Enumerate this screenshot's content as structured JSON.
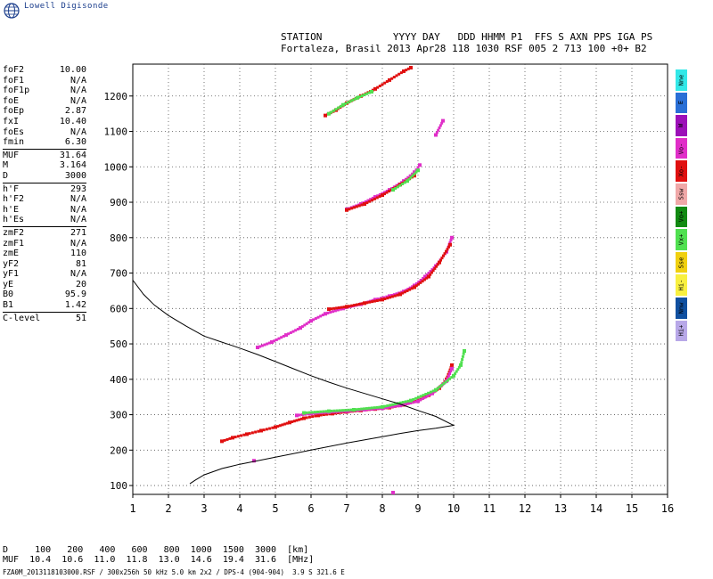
{
  "app": {
    "logo_text": "Lowell Digisonde"
  },
  "header": {
    "line1": "STATION            YYYY DAY   DDD HHMM P1  FFS S AXN PPS IGA PS",
    "line2": "Fortaleza, Brasil 2013 Apr28 118 1030 RSF 005 2 713 100 +0+ B2"
  },
  "params": [
    {
      "name": "foF2",
      "value": "10.00"
    },
    {
      "name": "foF1",
      "value": "N/A"
    },
    {
      "name": "foF1p",
      "value": "N/A"
    },
    {
      "name": "foE",
      "value": "N/A"
    },
    {
      "name": "foEp",
      "value": "2.87"
    },
    {
      "name": "fxI",
      "value": "10.40"
    },
    {
      "name": "foEs",
      "value": "N/A"
    },
    {
      "name": "fmin",
      "value": "6.30"
    },
    {
      "sep": true
    },
    {
      "name": "MUF",
      "value": "31.64"
    },
    {
      "name": "M",
      "value": "3.164"
    },
    {
      "name": "D",
      "value": "3000"
    },
    {
      "sep": true
    },
    {
      "name": "h'F",
      "value": "293"
    },
    {
      "name": "h'F2",
      "value": "N/A"
    },
    {
      "name": "h'E",
      "value": "N/A"
    },
    {
      "name": "h'Es",
      "value": "N/A"
    },
    {
      "sep": true
    },
    {
      "name": "zmF2",
      "value": "271"
    },
    {
      "name": "zmF1",
      "value": "N/A"
    },
    {
      "name": "zmE",
      "value": "110"
    },
    {
      "name": "yF2",
      "value": "81"
    },
    {
      "name": "yF1",
      "value": "N/A"
    },
    {
      "name": "yE",
      "value": "20"
    },
    {
      "name": "B0",
      "value": "95.9"
    },
    {
      "name": "B1",
      "value": "1.42"
    },
    {
      "sep": true
    },
    {
      "name": "C-level",
      "value": "51"
    }
  ],
  "legend": [
    {
      "label": "Nne",
      "color": "#33e8e8"
    },
    {
      "label": "E",
      "color": "#2a6fd6"
    },
    {
      "label": "W",
      "color": "#9c10b8"
    },
    {
      "label": "Vo-",
      "color": "#e02ec8"
    },
    {
      "label": "Xo-",
      "color": "#e01010"
    },
    {
      "label": "Ssw",
      "color": "#f0a8a8"
    },
    {
      "label": "Vo+",
      "color": "#128a12"
    },
    {
      "label": "Vx+",
      "color": "#50e050"
    },
    {
      "label": "Sse",
      "color": "#f0d010"
    },
    {
      "label": "Hi-",
      "color": "#f8f040"
    },
    {
      "label": "Nnw",
      "color": "#1050a0"
    },
    {
      "label": "Hi+",
      "color": "#b8a8e8"
    }
  ],
  "muf_table": {
    "line1": "D     100   200   400   600   800  1000  1500  3000  [km]",
    "line2": "MUF  10.4  10.6  11.0  11.8  13.0  14.6  19.4  31.6  [MHz]"
  },
  "footer": "FZA0M_2013118103000.RSF / 300x256h 50 kHz 5.0 km 2x2 / DPS-4 (904-904)  3.9 S 321.6 E",
  "chart_data": {
    "type": "scatter",
    "title": "",
    "xlabel": "",
    "ylabel": "",
    "xlim": [
      1,
      16
    ],
    "ylim": [
      75,
      1290
    ],
    "x_ticks": [
      1,
      2,
      3,
      4,
      5,
      6,
      7,
      8,
      9,
      10,
      11,
      12,
      13,
      14,
      15,
      16
    ],
    "y_ticks": [
      100,
      200,
      300,
      400,
      500,
      600,
      700,
      800,
      900,
      1000,
      1100,
      1200
    ],
    "grid": true,
    "series": [
      {
        "color": "#e01010",
        "points": [
          [
            3.5,
            225
          ],
          [
            3.8,
            235
          ],
          [
            4.2,
            245
          ],
          [
            4.6,
            255
          ],
          [
            5.0,
            265
          ],
          [
            5.4,
            278
          ],
          [
            5.8,
            290
          ],
          [
            6.2,
            298
          ],
          [
            6.6,
            303
          ],
          [
            7.0,
            308
          ],
          [
            7.4,
            312
          ],
          [
            7.8,
            316
          ],
          [
            8.2,
            320
          ],
          [
            8.6,
            328
          ],
          [
            9.0,
            340
          ],
          [
            9.3,
            355
          ],
          [
            9.6,
            375
          ],
          [
            9.8,
            400
          ],
          [
            9.95,
            440
          ]
        ]
      },
      {
        "color": "#e02ec8",
        "points": [
          [
            5.6,
            298
          ],
          [
            6.0,
            303
          ],
          [
            6.5,
            307
          ],
          [
            7.0,
            310
          ],
          [
            7.5,
            314
          ],
          [
            8.0,
            318
          ],
          [
            8.5,
            326
          ],
          [
            9.0,
            338
          ],
          [
            9.4,
            360
          ],
          [
            9.8,
            395
          ],
          [
            9.95,
            430
          ]
        ]
      },
      {
        "color": "#50e050",
        "points": [
          [
            5.8,
            305
          ],
          [
            6.5,
            310
          ],
          [
            7.2,
            314
          ],
          [
            8.0,
            322
          ],
          [
            8.8,
            340
          ],
          [
            9.5,
            370
          ],
          [
            10.0,
            410
          ],
          [
            10.2,
            440
          ],
          [
            10.3,
            480
          ]
        ]
      },
      {
        "color": "#e02ec8",
        "points": [
          [
            4.5,
            490
          ],
          [
            4.9,
            505
          ],
          [
            5.3,
            525
          ],
          [
            5.7,
            545
          ],
          [
            6.0,
            565
          ],
          [
            6.4,
            585
          ],
          [
            6.9,
            600
          ],
          [
            7.4,
            612
          ],
          [
            7.8,
            625
          ],
          [
            8.2,
            635
          ],
          [
            8.6,
            648
          ],
          [
            8.9,
            665
          ],
          [
            9.2,
            690
          ],
          [
            9.5,
            720
          ],
          [
            9.8,
            760
          ],
          [
            9.95,
            800
          ]
        ]
      },
      {
        "color": "#e01010",
        "points": [
          [
            6.5,
            598
          ],
          [
            7.0,
            605
          ],
          [
            7.5,
            615
          ],
          [
            8.0,
            625
          ],
          [
            8.5,
            640
          ],
          [
            8.9,
            660
          ],
          [
            9.3,
            690
          ],
          [
            9.6,
            730
          ],
          [
            9.9,
            780
          ]
        ]
      },
      {
        "color": "#e02ec8",
        "points": [
          [
            7.0,
            880
          ],
          [
            7.4,
            895
          ],
          [
            7.8,
            915
          ],
          [
            8.2,
            935
          ],
          [
            8.6,
            960
          ],
          [
            8.9,
            985
          ],
          [
            9.05,
            1005
          ]
        ]
      },
      {
        "color": "#e01010",
        "points": [
          [
            7.0,
            878
          ],
          [
            7.5,
            895
          ],
          [
            8.0,
            920
          ],
          [
            8.5,
            950
          ],
          [
            8.9,
            975
          ]
        ]
      },
      {
        "color": "#50e050",
        "points": [
          [
            8.3,
            935
          ],
          [
            8.7,
            960
          ],
          [
            9.0,
            990
          ]
        ]
      },
      {
        "color": "#e01010",
        "points": [
          [
            6.4,
            1145
          ],
          [
            6.7,
            1160
          ],
          [
            7.0,
            1180
          ],
          [
            7.4,
            1200
          ],
          [
            7.8,
            1220
          ],
          [
            8.2,
            1245
          ],
          [
            8.6,
            1270
          ],
          [
            8.8,
            1280
          ]
        ]
      },
      {
        "color": "#50e050",
        "points": [
          [
            6.5,
            1150
          ],
          [
            6.9,
            1175
          ],
          [
            7.3,
            1195
          ],
          [
            7.7,
            1212
          ]
        ]
      },
      {
        "color": "#e02ec8",
        "points": [
          [
            9.5,
            1090
          ],
          [
            9.7,
            1130
          ],
          [
            4.4,
            170
          ],
          [
            8.3,
            80
          ]
        ]
      }
    ],
    "profile": [
      [
        1.0,
        680
      ],
      [
        1.3,
        640
      ],
      [
        1.6,
        610
      ],
      [
        2.0,
        580
      ],
      [
        2.5,
        550
      ],
      [
        3.0,
        522
      ],
      [
        3.5,
        505
      ],
      [
        4.0,
        488
      ],
      [
        4.5,
        470
      ],
      [
        5.0,
        450
      ],
      [
        5.5,
        430
      ],
      [
        6.0,
        410
      ],
      [
        6.5,
        392
      ],
      [
        7.0,
        375
      ],
      [
        7.5,
        360
      ],
      [
        8.0,
        345
      ],
      [
        8.5,
        330
      ],
      [
        9.0,
        312
      ],
      [
        9.5,
        295
      ],
      [
        10.0,
        270
      ],
      [
        9.5,
        262
      ],
      [
        9.0,
        255
      ],
      [
        8.5,
        247
      ],
      [
        8.0,
        238
      ],
      [
        7.0,
        220
      ],
      [
        6.0,
        200
      ],
      [
        5.0,
        180
      ],
      [
        4.0,
        160
      ],
      [
        3.5,
        148
      ],
      [
        3.0,
        130
      ],
      [
        2.75,
        115
      ],
      [
        2.6,
        105
      ]
    ]
  }
}
